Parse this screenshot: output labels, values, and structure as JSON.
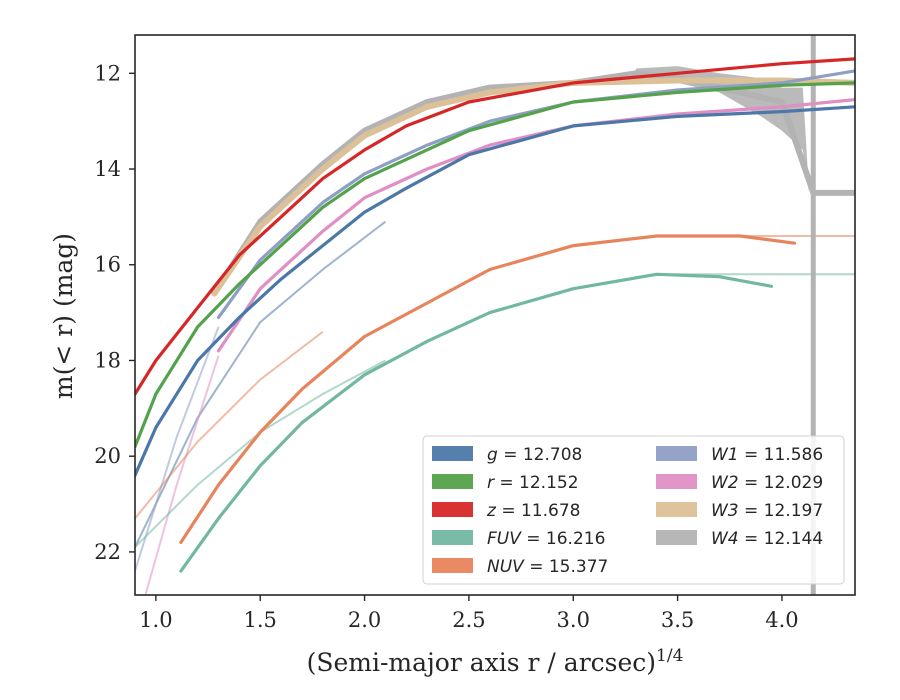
{
  "chart_data": {
    "type": "line",
    "title": "",
    "xlabel": "(Semi-major axis r / arcsec)",
    "xlabel_italic_part": "r",
    "xlabel_exponent": "1/4",
    "ylabel": "m(< r) (mag)",
    "xlim": [
      0.9,
      4.35
    ],
    "ylim": [
      22.9,
      11.2
    ],
    "y_inverted": true,
    "grid": false,
    "legend_position": "lower-right",
    "x_ticks": [
      1.0,
      1.5,
      2.0,
      2.5,
      3.0,
      3.5,
      4.0
    ],
    "x_tick_labels": [
      "1.0",
      "1.5",
      "2.0",
      "2.5",
      "3.0",
      "3.5",
      "4.0"
    ],
    "y_ticks": [
      12,
      14,
      16,
      18,
      20,
      22
    ],
    "y_tick_labels": [
      "12",
      "14",
      "16",
      "18",
      "20",
      "22"
    ],
    "series": [
      {
        "name": "g = 12.708",
        "color": "#4c78a8",
        "x": [
          0.9,
          1.0,
          1.2,
          1.4,
          1.6,
          1.8,
          2.0,
          2.2,
          2.5,
          3.0,
          3.5,
          4.0,
          4.35
        ],
        "y": [
          20.4,
          19.4,
          18.0,
          17.1,
          16.3,
          15.6,
          14.9,
          14.4,
          13.7,
          13.1,
          12.9,
          12.8,
          12.7
        ]
      },
      {
        "name": "r = 12.152",
        "color": "#54a24b",
        "x": [
          0.9,
          1.0,
          1.2,
          1.4,
          1.6,
          1.8,
          2.0,
          2.2,
          2.5,
          3.0,
          3.5,
          4.0,
          4.35
        ],
        "y": [
          19.8,
          18.7,
          17.3,
          16.4,
          15.6,
          14.8,
          14.2,
          13.8,
          13.2,
          12.6,
          12.4,
          12.25,
          12.2
        ]
      },
      {
        "name": "z = 11.678",
        "color": "#d62728",
        "x": [
          0.9,
          1.0,
          1.2,
          1.4,
          1.6,
          1.8,
          2.0,
          2.2,
          2.5,
          3.0,
          3.5,
          4.0,
          4.35
        ],
        "y": [
          18.7,
          18.0,
          16.9,
          15.8,
          15.0,
          14.2,
          13.6,
          13.1,
          12.6,
          12.2,
          12.0,
          11.8,
          11.7
        ]
      },
      {
        "name": "FUV = 16.216",
        "color": "#72b7a1",
        "x": [
          1.12,
          1.3,
          1.5,
          1.7,
          2.0,
          2.3,
          2.6,
          3.0,
          3.4,
          3.7,
          3.95
        ],
        "y": [
          22.4,
          21.3,
          20.2,
          19.3,
          18.3,
          17.6,
          17.0,
          16.5,
          16.2,
          16.25,
          16.45
        ]
      },
      {
        "name": "NUV = 15.377",
        "color": "#e8845c",
        "x": [
          1.12,
          1.3,
          1.5,
          1.7,
          2.0,
          2.3,
          2.6,
          3.0,
          3.4,
          3.8,
          4.06
        ],
        "y": [
          21.8,
          20.6,
          19.5,
          18.6,
          17.5,
          16.8,
          16.1,
          15.6,
          15.4,
          15.4,
          15.55
        ]
      },
      {
        "name": "W1 = 11.586",
        "color": "#8e9ec4",
        "x": [
          1.3,
          1.5,
          1.8,
          2.0,
          2.3,
          2.6,
          3.0,
          3.5,
          4.0,
          4.35
        ],
        "y": [
          17.1,
          15.9,
          14.7,
          14.1,
          13.5,
          13.0,
          12.6,
          12.35,
          12.2,
          11.95
        ]
      },
      {
        "name": "W2 = 12.029",
        "color": "#e08fc4",
        "x": [
          1.3,
          1.5,
          1.8,
          2.0,
          2.3,
          2.6,
          3.0,
          3.5,
          4.0,
          4.35
        ],
        "y": [
          17.8,
          16.5,
          15.3,
          14.6,
          14.0,
          13.5,
          13.1,
          12.85,
          12.7,
          12.55
        ]
      },
      {
        "name": "W3 = 12.197",
        "color": "#dcc097",
        "x": [
          1.28,
          1.5,
          1.8,
          2.0,
          2.3,
          2.6,
          3.0,
          3.5,
          4.0,
          4.35
        ],
        "y": [
          16.6,
          15.2,
          14.0,
          13.3,
          12.7,
          12.4,
          12.2,
          12.15,
          12.15,
          12.2
        ]
      },
      {
        "name": "W4 = 12.144",
        "color": "#b3b3b3",
        "x": [
          1.28,
          1.5,
          1.8,
          2.0,
          2.3,
          2.6,
          3.0,
          3.3,
          3.5,
          3.7,
          4.0,
          4.15,
          4.35
        ],
        "y": [
          16.6,
          15.1,
          13.9,
          13.2,
          12.6,
          12.3,
          12.2,
          12.0,
          12.1,
          12.3,
          12.6,
          14.5,
          14.5
        ]
      }
    ],
    "extrapolations": [
      {
        "series": "g = 12.708",
        "x": [
          0.9,
          1.2,
          1.5,
          1.8,
          2.1
        ],
        "y": [
          21.9,
          19.2,
          17.2,
          16.1,
          15.1
        ]
      },
      {
        "series": "W1 = 11.586",
        "x": [
          0.9,
          1.1,
          1.3
        ],
        "y": [
          22.4,
          19.6,
          17.3
        ]
      },
      {
        "series": "W2 = 12.029",
        "x": [
          0.95,
          1.1,
          1.3
        ],
        "y": [
          22.9,
          20.6,
          17.9
        ]
      },
      {
        "series": "FUV = 16.216",
        "x": [
          0.9,
          1.2,
          1.5,
          1.8,
          2.1
        ],
        "y": [
          21.9,
          20.6,
          19.5,
          18.7,
          18.0
        ]
      },
      {
        "series": "NUV = 15.377",
        "x": [
          0.9,
          1.2,
          1.5,
          1.8
        ],
        "y": [
          21.3,
          19.7,
          18.4,
          17.4
        ]
      },
      {
        "series": "FUV = 16.216",
        "x": [
          3.4,
          3.8,
          4.35
        ],
        "y": [
          16.2,
          16.2,
          16.2
        ]
      },
      {
        "series": "NUV = 15.377",
        "x": [
          3.4,
          3.8,
          4.35
        ],
        "y": [
          15.4,
          15.4,
          15.4
        ]
      }
    ]
  }
}
